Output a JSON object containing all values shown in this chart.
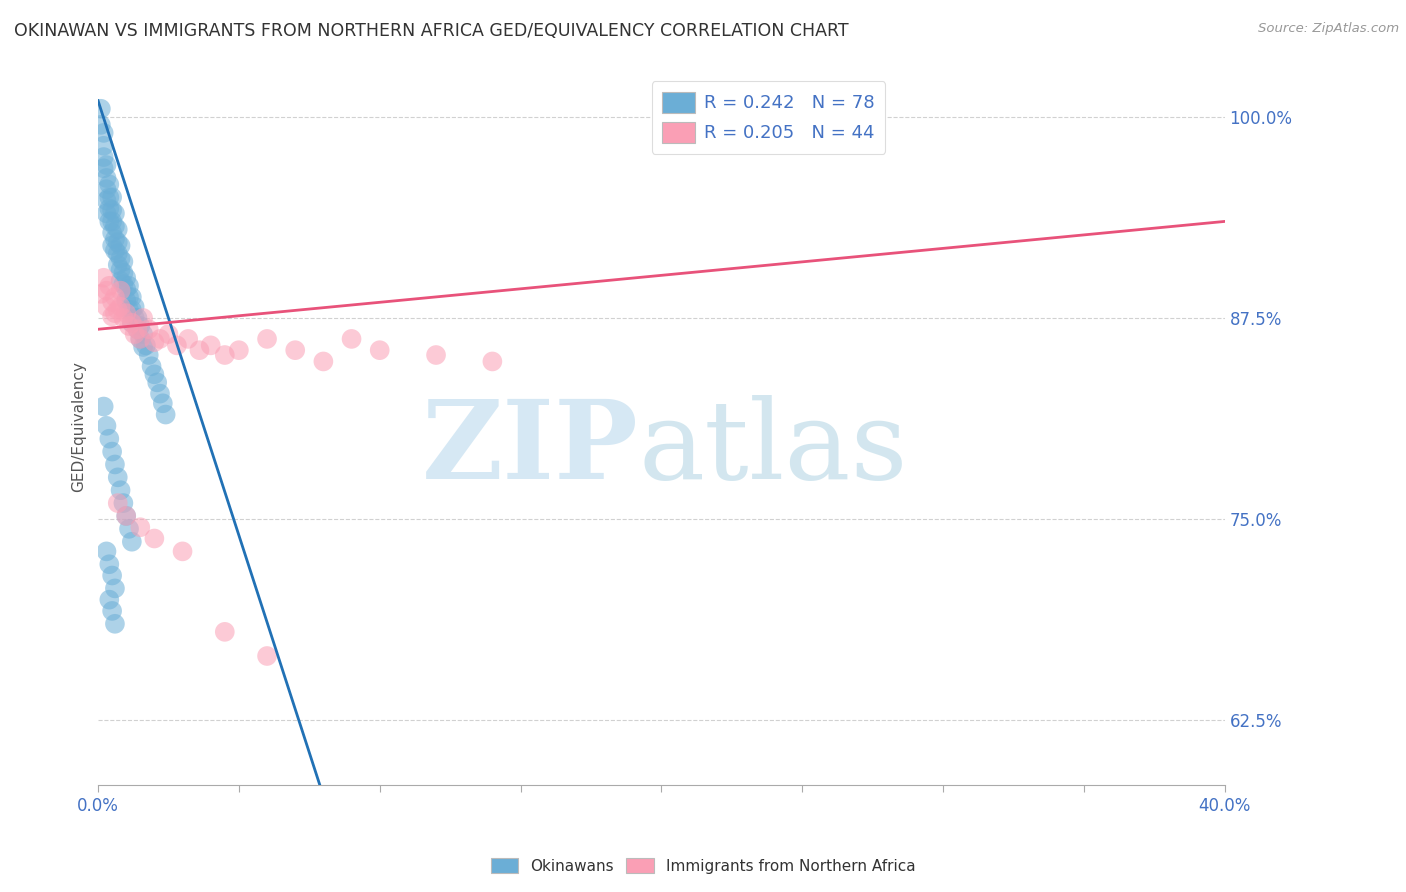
{
  "title": "OKINAWAN VS IMMIGRANTS FROM NORTHERN AFRICA GED/EQUIVALENCY CORRELATION CHART",
  "source": "Source: ZipAtlas.com",
  "ylabel": "GED/Equivalency",
  "ytick_labels": [
    "100.0%",
    "87.5%",
    "75.0%",
    "62.5%"
  ],
  "ytick_values": [
    1.0,
    0.875,
    0.75,
    0.625
  ],
  "xlim": [
    0.0,
    0.4
  ],
  "ylim": [
    0.585,
    1.03
  ],
  "legend1_label": "R = 0.242   N = 78",
  "legend2_label": "R = 0.205   N = 44",
  "legend_bottom_label1": "Okinawans",
  "legend_bottom_label2": "Immigrants from Northern Africa",
  "blue_color": "#6baed6",
  "pink_color": "#fa9fb5",
  "blue_line_color": "#2171b5",
  "pink_line_color": "#e8527a",
  "title_color": "#333333",
  "okinawan_x": [
    0.001,
    0.001,
    0.002,
    0.002,
    0.002,
    0.002,
    0.003,
    0.003,
    0.003,
    0.003,
    0.003,
    0.004,
    0.004,
    0.004,
    0.004,
    0.005,
    0.005,
    0.005,
    0.005,
    0.005,
    0.006,
    0.006,
    0.006,
    0.006,
    0.007,
    0.007,
    0.007,
    0.007,
    0.008,
    0.008,
    0.008,
    0.008,
    0.009,
    0.009,
    0.009,
    0.01,
    0.01,
    0.01,
    0.011,
    0.011,
    0.011,
    0.012,
    0.012,
    0.012,
    0.013,
    0.013,
    0.014,
    0.014,
    0.015,
    0.015,
    0.016,
    0.016,
    0.017,
    0.018,
    0.019,
    0.02,
    0.021,
    0.022,
    0.023,
    0.024,
    0.002,
    0.003,
    0.004,
    0.005,
    0.006,
    0.007,
    0.008,
    0.009,
    0.01,
    0.011,
    0.012,
    0.003,
    0.004,
    0.005,
    0.006,
    0.004,
    0.005,
    0.006
  ],
  "okinawan_y": [
    1.005,
    0.995,
    0.99,
    0.982,
    0.975,
    0.968,
    0.97,
    0.962,
    0.955,
    0.948,
    0.94,
    0.958,
    0.95,
    0.943,
    0.935,
    0.95,
    0.942,
    0.935,
    0.928,
    0.92,
    0.94,
    0.932,
    0.924,
    0.917,
    0.93,
    0.922,
    0.915,
    0.908,
    0.92,
    0.912,
    0.905,
    0.898,
    0.91,
    0.903,
    0.896,
    0.9,
    0.893,
    0.886,
    0.895,
    0.888,
    0.88,
    0.888,
    0.88,
    0.872,
    0.882,
    0.875,
    0.875,
    0.868,
    0.87,
    0.862,
    0.865,
    0.857,
    0.858,
    0.852,
    0.845,
    0.84,
    0.835,
    0.828,
    0.822,
    0.815,
    0.82,
    0.808,
    0.8,
    0.792,
    0.784,
    0.776,
    0.768,
    0.76,
    0.752,
    0.744,
    0.736,
    0.73,
    0.722,
    0.715,
    0.707,
    0.7,
    0.693,
    0.685
  ],
  "northern_africa_x": [
    0.001,
    0.002,
    0.003,
    0.003,
    0.004,
    0.005,
    0.005,
    0.006,
    0.006,
    0.007,
    0.008,
    0.008,
    0.009,
    0.01,
    0.011,
    0.012,
    0.013,
    0.014,
    0.015,
    0.016,
    0.018,
    0.02,
    0.022,
    0.025,
    0.028,
    0.032,
    0.036,
    0.04,
    0.045,
    0.05,
    0.06,
    0.07,
    0.08,
    0.09,
    0.1,
    0.12,
    0.14,
    0.007,
    0.01,
    0.015,
    0.02,
    0.03,
    0.045,
    0.06
  ],
  "northern_africa_y": [
    0.89,
    0.9,
    0.892,
    0.882,
    0.895,
    0.885,
    0.876,
    0.888,
    0.878,
    0.88,
    0.892,
    0.882,
    0.875,
    0.878,
    0.87,
    0.872,
    0.865,
    0.868,
    0.862,
    0.875,
    0.868,
    0.86,
    0.862,
    0.865,
    0.858,
    0.862,
    0.855,
    0.858,
    0.852,
    0.855,
    0.862,
    0.855,
    0.848,
    0.862,
    0.855,
    0.852,
    0.848,
    0.76,
    0.752,
    0.745,
    0.738,
    0.73,
    0.68,
    0.665
  ],
  "blue_line_x0": 0.0,
  "blue_line_y0": 1.01,
  "blue_line_x1": 0.025,
  "blue_line_y1": 0.875,
  "pink_line_x0": 0.0,
  "pink_line_y0": 0.868,
  "pink_line_x1": 0.4,
  "pink_line_y1": 0.935
}
